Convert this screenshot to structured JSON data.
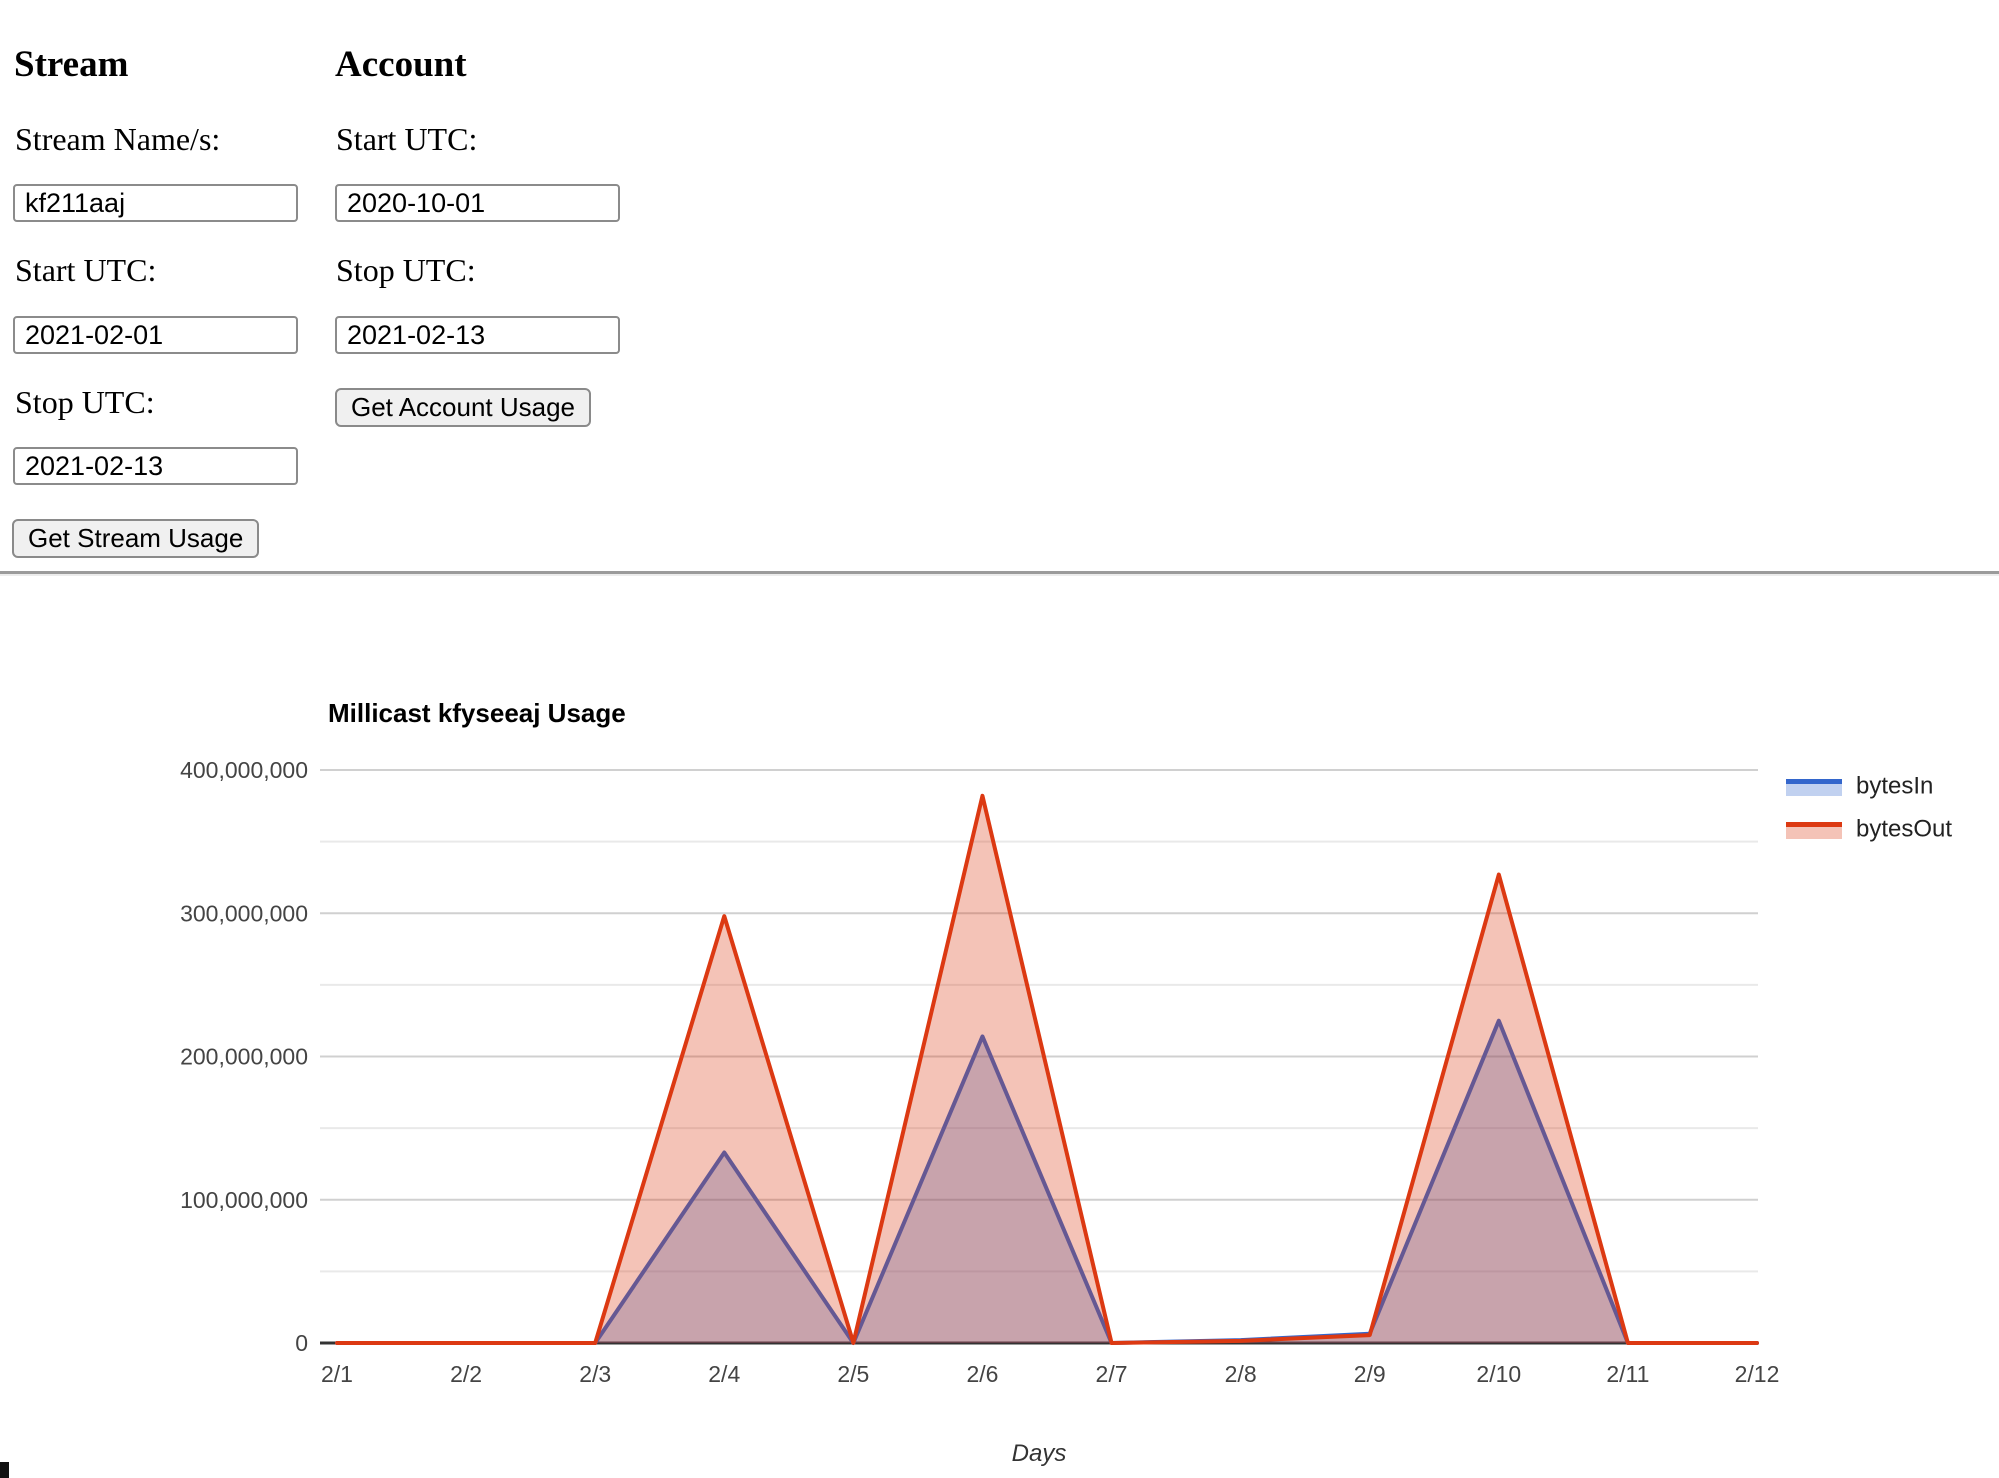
{
  "stream_panel": {
    "heading": "Stream",
    "stream_name_label": "Stream Name/s:",
    "stream_name_value": "kf211aaj",
    "start_label": "Start UTC:",
    "start_value": "2021-02-01",
    "stop_label": "Stop UTC:",
    "stop_value": "2021-02-13",
    "button_label": "Get Stream Usage"
  },
  "account_panel": {
    "heading": "Account",
    "start_label": "Start UTC:",
    "start_value": "2020-10-01",
    "stop_label": "Stop UTC:",
    "stop_value": "2021-02-13",
    "button_label": "Get Account Usage"
  },
  "chart_data": {
    "type": "area",
    "title": "Millicast kfyseeaj Usage",
    "xlabel": "Days",
    "categories": [
      "2/1",
      "2/2",
      "2/3",
      "2/4",
      "2/5",
      "2/6",
      "2/7",
      "2/8",
      "2/9",
      "2/10",
      "2/11",
      "2/12"
    ],
    "series": [
      {
        "name": "bytesIn",
        "color": "#3366CC",
        "values": [
          0,
          0,
          0,
          133000000,
          0,
          214000000,
          0,
          2000000,
          6500000,
          225000000,
          0,
          0
        ]
      },
      {
        "name": "bytesOut",
        "color": "#DC3912",
        "values": [
          0,
          0,
          0,
          298000000,
          0,
          382000000,
          0,
          1500000,
          5500000,
          327000000,
          0,
          0
        ]
      }
    ],
    "ylim": [
      0,
      400000000
    ],
    "ytick_step": 100000000,
    "ytick_labels": [
      "0",
      "100,000,000",
      "200,000,000",
      "300,000,000",
      "400,000,000"
    ],
    "minor_grid_step": 50000000,
    "grid": true,
    "legend_position": "right",
    "axis_label_color": "#444444",
    "grid_major_color": "#d0d0d0",
    "grid_minor_color": "#e9e9e9",
    "baseline_color": "#333333",
    "area_opacity": 0.3
  }
}
